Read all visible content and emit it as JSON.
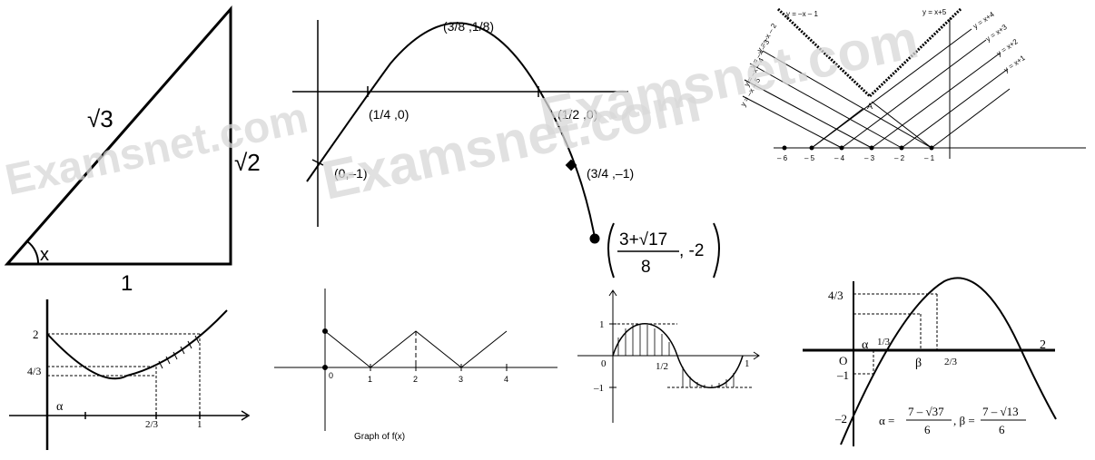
{
  "watermark": {
    "text": "Examsnet.com",
    "color": "#d8d8d8"
  },
  "triangle": {
    "hyp": "√3",
    "side": "√2",
    "base": "1",
    "angle": "x"
  },
  "parabola": {
    "vertex": "(3/8 ,1/8)",
    "p1": "(1/4 ,0)",
    "p2": "(1/2 ,0)",
    "p3": "(0,–1)",
    "p4": "(3/4 ,–1)",
    "p5_num_a": "3+",
    "p5_num_b": "√17",
    "p5_den": "8",
    "p5_y": ", -2"
  },
  "lines": {
    "labels": [
      "y = –x – 1",
      "y = x+5",
      "y = x+4",
      "y = x+3",
      "y = x+2",
      "y = x+1",
      "y = –x – 2",
      "y = –x – 3",
      "y = –x – 4",
      "y = –x – 5"
    ],
    "point": "A",
    "ticks": [
      "– 6",
      "– 5",
      "– 4",
      "– 3",
      "– 2",
      "– 1"
    ]
  },
  "curve": {
    "y2": "2",
    "y43": "4/3",
    "alpha": "α",
    "x23": "2/3",
    "x1": "1"
  },
  "zigzag": {
    "ticks": [
      "0",
      "1",
      "2",
      "3",
      "4"
    ],
    "caption": "Graph of f(x)"
  },
  "sine": {
    "y1": "1",
    "ym1": "–1",
    "o": "0",
    "half": "1/2",
    "one": "1"
  },
  "last": {
    "y43": "4/3",
    "O": "O",
    "ym1": "–1",
    "ym2": "–2",
    "alpha": "α",
    "x13": "1/3",
    "beta": "β",
    "x23": "2/3",
    "x2": "2",
    "alpha_eq": "α =",
    "a_num": "7 – √37",
    "a_den": "6",
    "beta_eq": ", β =",
    "b_num": "7 – √13",
    "b_den": "6"
  }
}
